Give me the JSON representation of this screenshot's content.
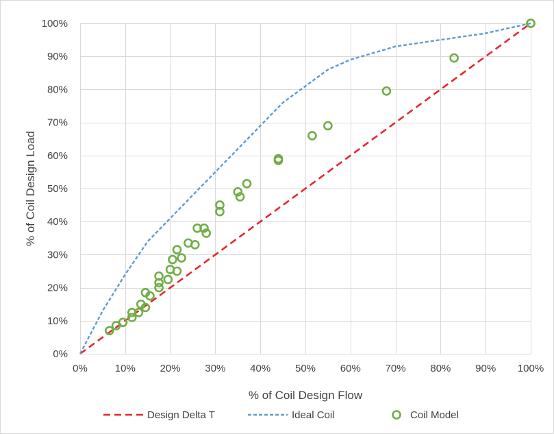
{
  "chart_data": {
    "type": "scatter",
    "title": "",
    "xlabel": "% of Coil Design Flow",
    "ylabel": "% of Coil Design Load",
    "xlim": [
      0,
      100
    ],
    "ylim": [
      0,
      100
    ],
    "x_ticks": [
      "0%",
      "10%",
      "20%",
      "30%",
      "40%",
      "50%",
      "60%",
      "70%",
      "80%",
      "90%",
      "100%"
    ],
    "y_ticks": [
      "0%",
      "10%",
      "20%",
      "30%",
      "40%",
      "50%",
      "60%",
      "70%",
      "80%",
      "90%",
      "100%"
    ],
    "grid": true,
    "legend_position": "bottom",
    "series": [
      {
        "name": "Design Delta T",
        "style": "dashed-line",
        "color": "#e8262b",
        "points": [
          [
            0,
            0
          ],
          [
            100,
            100
          ]
        ]
      },
      {
        "name": "Ideal Coil",
        "style": "dashed-line",
        "color": "#5b9bd5",
        "points": [
          [
            0,
            0
          ],
          [
            5,
            13
          ],
          [
            10,
            24
          ],
          [
            15,
            34
          ],
          [
            20,
            41
          ],
          [
            25,
            48
          ],
          [
            30,
            55
          ],
          [
            35,
            62
          ],
          [
            40,
            69
          ],
          [
            45,
            76
          ],
          [
            50,
            81
          ],
          [
            55,
            86
          ],
          [
            60,
            89
          ],
          [
            65,
            91
          ],
          [
            70,
            93
          ],
          [
            75,
            94
          ],
          [
            80,
            95
          ],
          [
            85,
            96
          ],
          [
            90,
            97
          ],
          [
            95,
            98.5
          ],
          [
            100,
            100
          ]
        ]
      },
      {
        "name": "Coil Model",
        "style": "marker-circle",
        "color": "#70ad47",
        "points": [
          [
            6.5,
            7
          ],
          [
            8,
            8.5
          ],
          [
            9.5,
            9.5
          ],
          [
            11.5,
            11
          ],
          [
            11.5,
            12.5
          ],
          [
            13,
            12.5
          ],
          [
            13.5,
            15
          ],
          [
            14.5,
            14
          ],
          [
            14.5,
            18.5
          ],
          [
            15.5,
            17.5
          ],
          [
            17.5,
            21.5
          ],
          [
            17.5,
            23.5
          ],
          [
            17.5,
            20
          ],
          [
            19.5,
            22.5
          ],
          [
            20,
            25.5
          ],
          [
            20.5,
            28.5
          ],
          [
            21.5,
            31.5
          ],
          [
            21.5,
            25
          ],
          [
            22.5,
            29
          ],
          [
            24,
            33.5
          ],
          [
            25.5,
            33
          ],
          [
            26,
            38
          ],
          [
            27.5,
            38
          ],
          [
            28,
            36.5
          ],
          [
            31,
            45
          ],
          [
            31,
            43
          ],
          [
            35,
            49
          ],
          [
            35.5,
            47.5
          ],
          [
            37,
            51.5
          ],
          [
            44,
            58.5
          ],
          [
            44,
            59
          ],
          [
            51.5,
            66
          ],
          [
            55,
            69
          ],
          [
            68,
            79.5
          ],
          [
            83,
            89.5
          ],
          [
            100,
            100
          ],
          [
            100,
            100
          ]
        ]
      }
    ]
  }
}
